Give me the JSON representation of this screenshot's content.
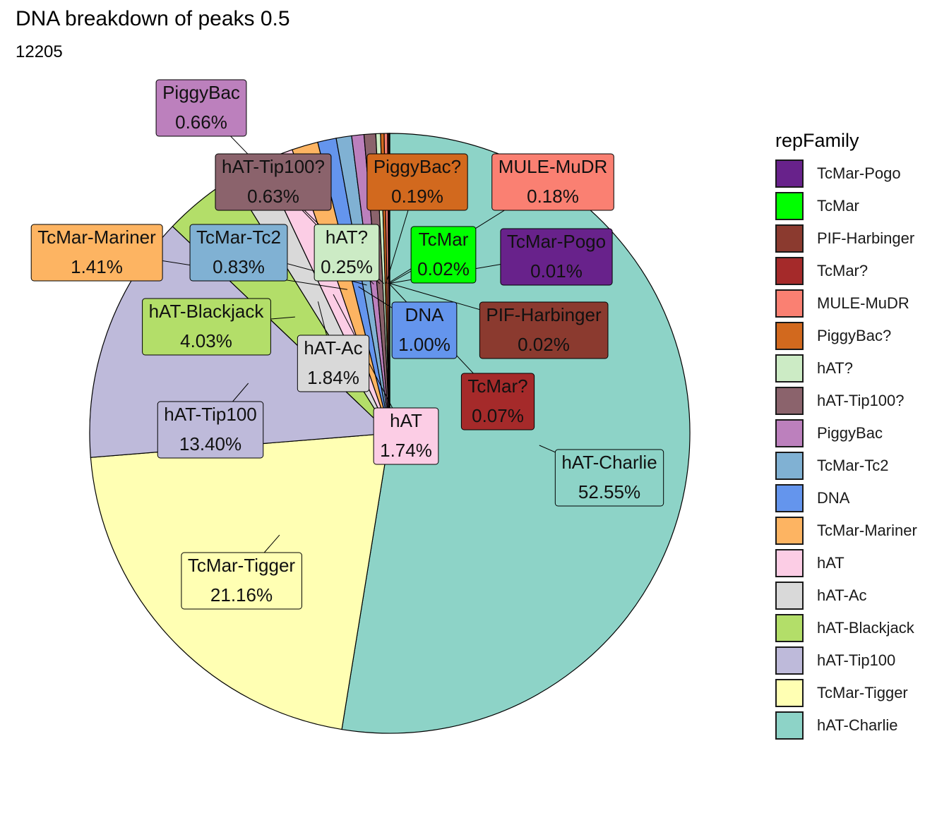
{
  "title": "DNA breakdown of peaks 0.5",
  "subtitle": "12205",
  "chart_data": {
    "type": "pie",
    "title": "DNA breakdown of peaks 0.5",
    "subtitle": "12205",
    "legend_title": "repFamily",
    "legend_position": "right",
    "slices": [
      {
        "name": "hAT-Charlie",
        "value": 52.55,
        "label": "52.55%",
        "color": "#8DD3C7"
      },
      {
        "name": "TcMar-Tigger",
        "value": 21.16,
        "label": "21.16%",
        "color": "#FFFFB3"
      },
      {
        "name": "hAT-Tip100",
        "value": 13.4,
        "label": "13.40%",
        "color": "#BEBADA"
      },
      {
        "name": "hAT-Blackjack",
        "value": 4.03,
        "label": "4.03%",
        "color": "#B3DE69"
      },
      {
        "name": "hAT-Ac",
        "value": 1.84,
        "label": "1.84%",
        "color": "#D9D9D9"
      },
      {
        "name": "hAT",
        "value": 1.74,
        "label": "1.74%",
        "color": "#FCCDE5"
      },
      {
        "name": "TcMar-Mariner",
        "value": 1.41,
        "label": "1.41%",
        "color": "#FDB462"
      },
      {
        "name": "DNA",
        "value": 1.0,
        "label": "1.00%",
        "color": "#6495ED"
      },
      {
        "name": "TcMar-Tc2",
        "value": 0.83,
        "label": "0.83%",
        "color": "#80B1D3"
      },
      {
        "name": "PiggyBac",
        "value": 0.66,
        "label": "0.66%",
        "color": "#BC80BD"
      },
      {
        "name": "hAT-Tip100?",
        "value": 0.63,
        "label": "0.63%",
        "color": "#8B636C"
      },
      {
        "name": "hAT?",
        "value": 0.25,
        "label": "0.25%",
        "color": "#CCEBC5"
      },
      {
        "name": "PiggyBac?",
        "value": 0.19,
        "label": "0.19%",
        "color": "#D2691E"
      },
      {
        "name": "MULE-MuDR",
        "value": 0.18,
        "label": "0.18%",
        "color": "#FA8072"
      },
      {
        "name": "TcMar?",
        "value": 0.07,
        "label": "0.07%",
        "color": "#A52A2A"
      },
      {
        "name": "PIF-Harbinger",
        "value": 0.02,
        "label": "0.02%",
        "color": "#8B3A2F"
      },
      {
        "name": "TcMar",
        "value": 0.02,
        "label": "0.02%",
        "color": "#00FF00"
      },
      {
        "name": "TcMar-Pogo",
        "value": 0.01,
        "label": "0.01%",
        "color": "#68228B"
      }
    ],
    "legend_order": [
      "TcMar-Pogo",
      "TcMar",
      "PIF-Harbinger",
      "TcMar?",
      "MULE-MuDR",
      "PiggyBac?",
      "hAT?",
      "hAT-Tip100?",
      "PiggyBac",
      "TcMar-Tc2",
      "DNA",
      "TcMar-Mariner",
      "hAT",
      "hAT-Ac",
      "hAT-Blackjack",
      "hAT-Tip100",
      "TcMar-Tigger",
      "hAT-Charlie"
    ]
  }
}
